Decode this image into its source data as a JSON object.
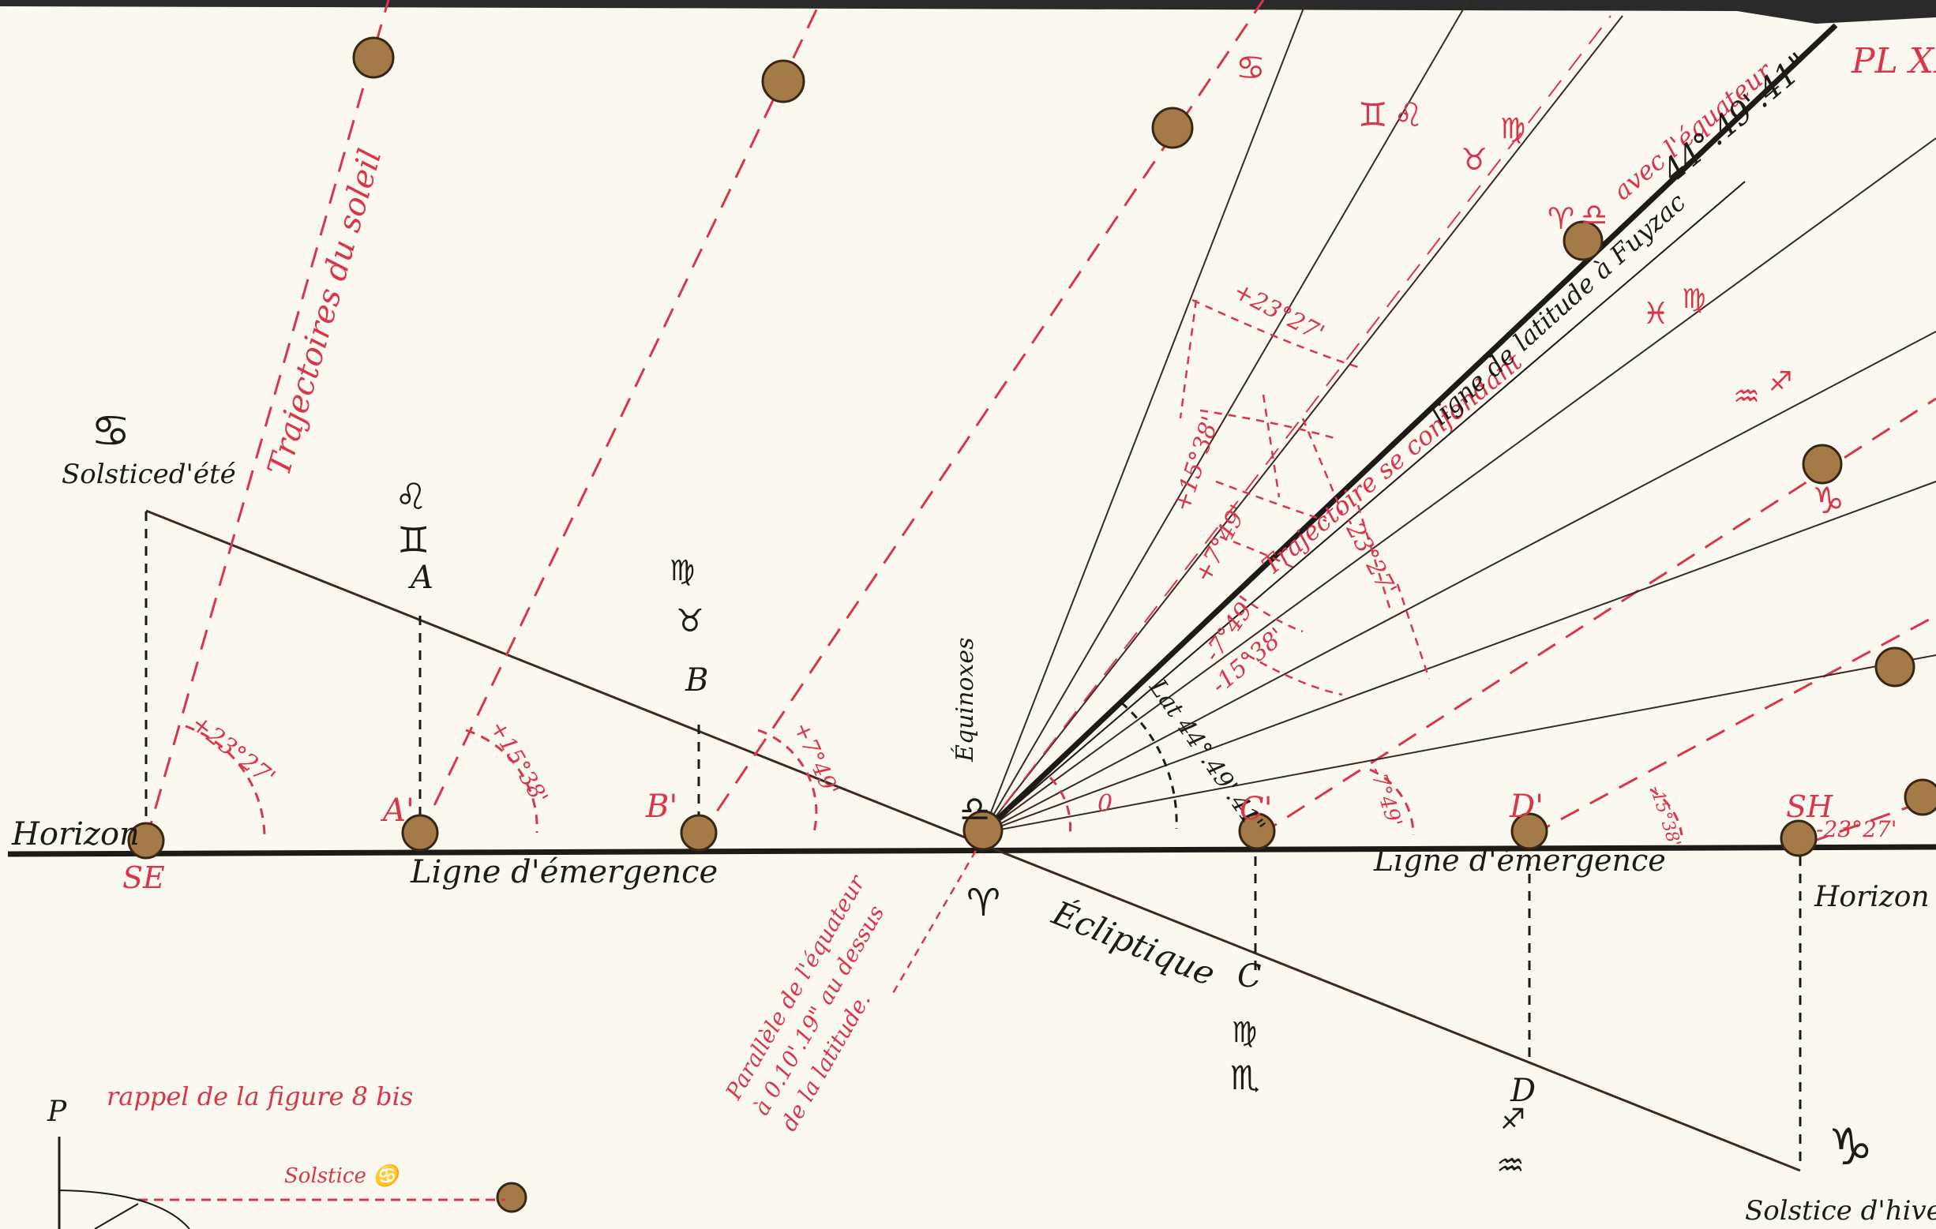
{
  "plate_label": "PL XIII",
  "horizon_left": "Horizon",
  "horizon_right": "Horizon",
  "se": "SE",
  "sh": "SH",
  "solstice_ete": "Solsticed'été",
  "solstice_hiver": "Solstice d'hiver",
  "emergence_left": "Ligne d'émergence",
  "emergence_right": "Ligne d'émergence",
  "ecliptique": "Écliptique",
  "equinoxes": "Équinoxes",
  "trajectoires_soleil": "Trajectoires du soleil",
  "trajectoire_confondant": "Trajectoire se confondant",
  "avec_equateur": "avec l'équateur",
  "ligne_latitude": "ligne de latitude à Fuyzac",
  "latitude_value": "44°.49'.41\"",
  "lat_arc": "Lat 44°.49'.41\"",
  "parallele_1": "Parallèle de l'équateur",
  "parallele_2": "à 0.10'.19\" au dessus",
  "parallele_3": "de la latitude.",
  "rappel": "rappel de la figure 8 bis",
  "p_label": "P",
  "solstice_small": "Solstice ♋",
  "points": {
    "A": "A",
    "B": "B",
    "A_prime": "A'",
    "B_prime": "B'",
    "C": "C",
    "C_prime": "C'",
    "D": "D",
    "D_prime": "D'"
  },
  "angles_left": [
    "+23°27'",
    "+15°38'",
    "+7°49'"
  ],
  "angle_zero": "0",
  "angles_right_bottom": [
    "-7°49'",
    "-15°38'",
    "-23°27'"
  ],
  "fan_labels_pos": [
    "+23°27'",
    "+15°38'",
    "+7°49'"
  ],
  "fan_labels_neg": [
    "-7°49'",
    "-15°38'",
    "-23°27'"
  ],
  "symbols": {
    "cancer": "♋",
    "leo": "♌",
    "gemini": "♊",
    "virgo": "♍",
    "taurus": "♉",
    "libra": "♎",
    "aries": "♈",
    "scorpio": "♏",
    "sagittarius": "♐",
    "capricorn": "♑",
    "aquarius": "♒",
    "pisces": "♓"
  },
  "colors": {
    "ink": "#1e1a18",
    "red": "#d8364a",
    "dot": "#a47a48",
    "paper": "#fbf8f0"
  }
}
